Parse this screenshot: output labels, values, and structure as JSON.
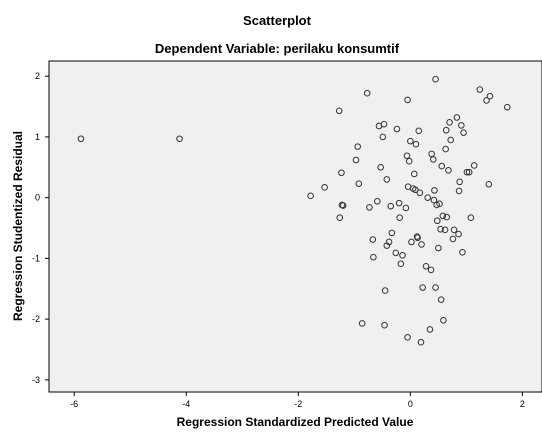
{
  "chart_data": {
    "type": "scatter",
    "title": "Scatterplot",
    "subtitle": "Dependent Variable: perilaku konsumtif",
    "xlabel": "Regression Standardized Predicted Value",
    "ylabel": "Regression Studentized Residual",
    "xlim": [
      -6.45,
      2.35
    ],
    "ylim": [
      -3.2,
      2.25
    ],
    "xticks": [
      "-6",
      "-4",
      "-2",
      "0",
      "2"
    ],
    "yticks": [
      "-3",
      "-2",
      "-1",
      "0",
      "1",
      "2"
    ],
    "grid": false,
    "legend": "none",
    "colors": {
      "plot_background": "#f0f0f0",
      "marker_stroke": "#333333",
      "frame": "#000000"
    },
    "points": [
      [
        -5.88,
        0.97
      ],
      [
        -4.12,
        0.97
      ],
      [
        -1.78,
        0.03
      ],
      [
        -1.53,
        0.17
      ],
      [
        -1.27,
        1.43
      ],
      [
        -1.26,
        -0.33
      ],
      [
        -1.22,
        -0.12
      ],
      [
        -1.2,
        -0.13
      ],
      [
        -1.23,
        0.41
      ],
      [
        -0.97,
        0.62
      ],
      [
        -0.94,
        0.84
      ],
      [
        -0.92,
        0.23
      ],
      [
        -0.86,
        -2.07
      ],
      [
        -0.77,
        1.72
      ],
      [
        -0.73,
        -0.16
      ],
      [
        -0.67,
        -0.69
      ],
      [
        -0.66,
        -0.98
      ],
      [
        -0.59,
        -0.06
      ],
      [
        -0.56,
        1.18
      ],
      [
        -0.53,
        0.5
      ],
      [
        -0.49,
        1.0
      ],
      [
        -0.47,
        1.21
      ],
      [
        -0.46,
        -2.1
      ],
      [
        -0.45,
        -1.53
      ],
      [
        -0.42,
        0.3
      ],
      [
        -0.42,
        -0.79
      ],
      [
        -0.38,
        -0.73
      ],
      [
        -0.35,
        -0.14
      ],
      [
        -0.33,
        -0.58
      ],
      [
        -0.26,
        -0.91
      ],
      [
        -0.24,
        1.13
      ],
      [
        -0.2,
        -0.09
      ],
      [
        -0.19,
        -0.33
      ],
      [
        -0.17,
        -1.09
      ],
      [
        -0.14,
        -0.95
      ],
      [
        -0.08,
        -0.17
      ],
      [
        -0.06,
        0.69
      ],
      [
        -0.05,
        1.61
      ],
      [
        -0.05,
        -2.3
      ],
      [
        -0.04,
        0.18
      ],
      [
        -0.02,
        0.6
      ],
      [
        0.0,
        0.93
      ],
      [
        0.02,
        -0.73
      ],
      [
        0.05,
        0.15
      ],
      [
        0.07,
        0.39
      ],
      [
        0.09,
        0.13
      ],
      [
        0.1,
        0.88
      ],
      [
        0.12,
        -0.64
      ],
      [
        0.13,
        -0.66
      ],
      [
        0.15,
        1.1
      ],
      [
        0.17,
        0.08
      ],
      [
        0.19,
        -2.38
      ],
      [
        0.2,
        -0.77
      ],
      [
        0.22,
        -1.48
      ],
      [
        0.28,
        -1.13
      ],
      [
        0.31,
        0.0
      ],
      [
        0.35,
        -2.17
      ],
      [
        0.37,
        -1.19
      ],
      [
        0.38,
        0.72
      ],
      [
        0.41,
        0.63
      ],
      [
        0.42,
        -0.04
      ],
      [
        0.43,
        0.12
      ],
      [
        0.45,
        -1.48
      ],
      [
        0.45,
        1.95
      ],
      [
        0.47,
        -0.12
      ],
      [
        0.48,
        -0.38
      ],
      [
        0.5,
        -0.83
      ],
      [
        0.52,
        -0.1
      ],
      [
        0.54,
        -0.52
      ],
      [
        0.55,
        -1.68
      ],
      [
        0.56,
        0.52
      ],
      [
        0.58,
        -0.3
      ],
      [
        0.59,
        -2.02
      ],
      [
        0.62,
        -0.53
      ],
      [
        0.63,
        0.8
      ],
      [
        0.64,
        1.11
      ],
      [
        0.65,
        -0.32
      ],
      [
        0.68,
        0.45
      ],
      [
        0.7,
        1.24
      ],
      [
        0.72,
        0.95
      ],
      [
        0.76,
        -0.68
      ],
      [
        0.78,
        -0.53
      ],
      [
        0.83,
        1.32
      ],
      [
        0.86,
        -0.6
      ],
      [
        0.87,
        0.11
      ],
      [
        0.88,
        0.26
      ],
      [
        0.91,
        1.19
      ],
      [
        0.93,
        -0.9
      ],
      [
        0.95,
        1.07
      ],
      [
        1.01,
        0.42
      ],
      [
        1.05,
        0.42
      ],
      [
        1.08,
        -0.33
      ],
      [
        1.14,
        0.53
      ],
      [
        1.24,
        1.78
      ],
      [
        1.36,
        1.6
      ],
      [
        1.42,
        1.67
      ],
      [
        1.4,
        0.22
      ],
      [
        1.73,
        1.49
      ]
    ]
  }
}
